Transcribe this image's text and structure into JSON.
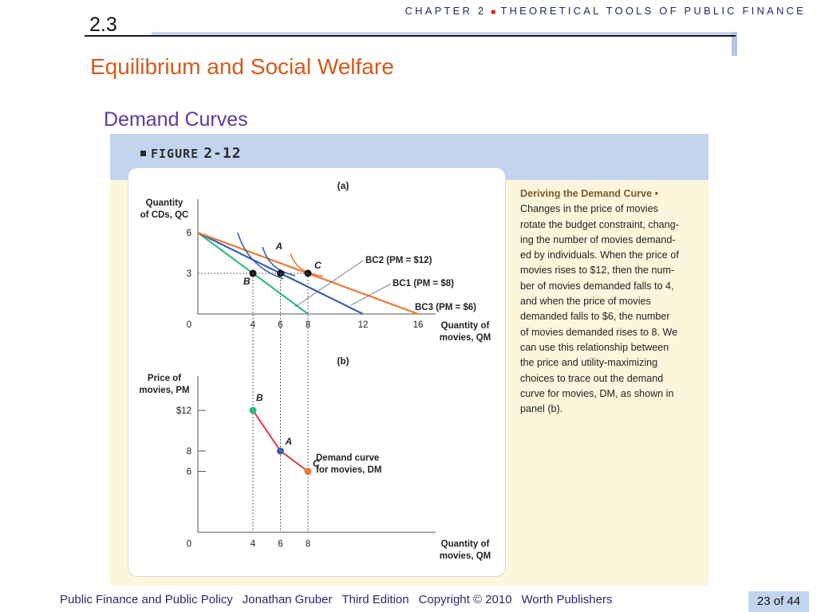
{
  "header": {
    "chapter_word": "CHAPTER 2",
    "chapter_title": "THEORETICAL TOOLS OF PUBLIC FINANCE",
    "section_number": "2.3",
    "section_title": "Equilibrium and Social Welfare",
    "subtitle": "Demand Curves"
  },
  "figure": {
    "label": "FIGURE",
    "number": "2-12",
    "caption_lead": "Deriving the Demand Curve •",
    "caption_lines": [
      "Changes in the price of movies",
      "rotate the budget constraint, chang-",
      "ing the number of movies demand-",
      "ed by individuals. When the price of",
      "movies rises to $12, then the num-",
      "ber of movies demanded falls to 4,",
      "and when the price of movies",
      "demanded falls to $6, the number",
      "of movies demanded rises to 8. We",
      "can use this relationship between",
      "the price and utility-maximizing",
      "choices to trace out the demand",
      "curve for movies, DM, as shown in",
      "panel (b)."
    ]
  },
  "chart_data": [
    {
      "type": "line",
      "panel": "(a)",
      "ylabel_line1": "Quantity",
      "ylabel_line2": "of CDs, QC",
      "xlabel_line1": "Quantity of",
      "xlabel_line2": "movies, QM",
      "x_ticks": [
        "0",
        "4",
        "6",
        "8",
        "12",
        "16"
      ],
      "y_ticks": [
        "6",
        "3"
      ],
      "xlim": [
        0,
        18
      ],
      "ylim": [
        0,
        7
      ],
      "series": [
        {
          "name": "BC2 (PM = $12)",
          "color": "#2ebc7c",
          "x": [
            0,
            8
          ],
          "y": [
            6,
            0
          ]
        },
        {
          "name": "BC1 (PM = $8)",
          "color": "#3a5fb0",
          "x": [
            0,
            12
          ],
          "y": [
            6,
            0
          ]
        },
        {
          "name": "BC3 (PM = $6)",
          "color": "#ea7a3a",
          "x": [
            0,
            16
          ],
          "y": [
            6,
            0
          ]
        }
      ],
      "points": [
        {
          "label": "B",
          "x": 4,
          "y": 3
        },
        {
          "label": "A",
          "x": 6,
          "y": 3
        },
        {
          "label": "C",
          "x": 8,
          "y": 3
        }
      ]
    },
    {
      "type": "line",
      "panel": "(b)",
      "ylabel_line1": "Price of",
      "ylabel_line2": "movies, PM",
      "xlabel_line1": "Quantity of",
      "xlabel_line2": "movies, QM",
      "x_ticks": [
        "0",
        "4",
        "6",
        "8"
      ],
      "y_ticks": [
        "$12",
        "8",
        "6"
      ],
      "series": [
        {
          "name": "Demand curve for movies, DM",
          "color": "#e04848",
          "x": [
            4,
            6,
            8
          ],
          "y": [
            12,
            8,
            6
          ]
        }
      ],
      "points": [
        {
          "label": "B",
          "x": 4,
          "y": 12,
          "color": "#2ebc7c"
        },
        {
          "label": "A",
          "x": 6,
          "y": 8,
          "color": "#3a5fb0"
        },
        {
          "label": "C",
          "x": 8,
          "y": 6,
          "color": "#ea7a3a"
        }
      ],
      "curve_label_line1": "Demand curve",
      "curve_label_line2": "for movies, DM"
    }
  ],
  "footer": {
    "book": "Public Finance and Public Policy",
    "author": "Jonathan Gruber",
    "edition": "Third Edition",
    "copyright": "Copyright © 2010",
    "publisher": "Worth Publishers",
    "page": "23 of 44"
  }
}
